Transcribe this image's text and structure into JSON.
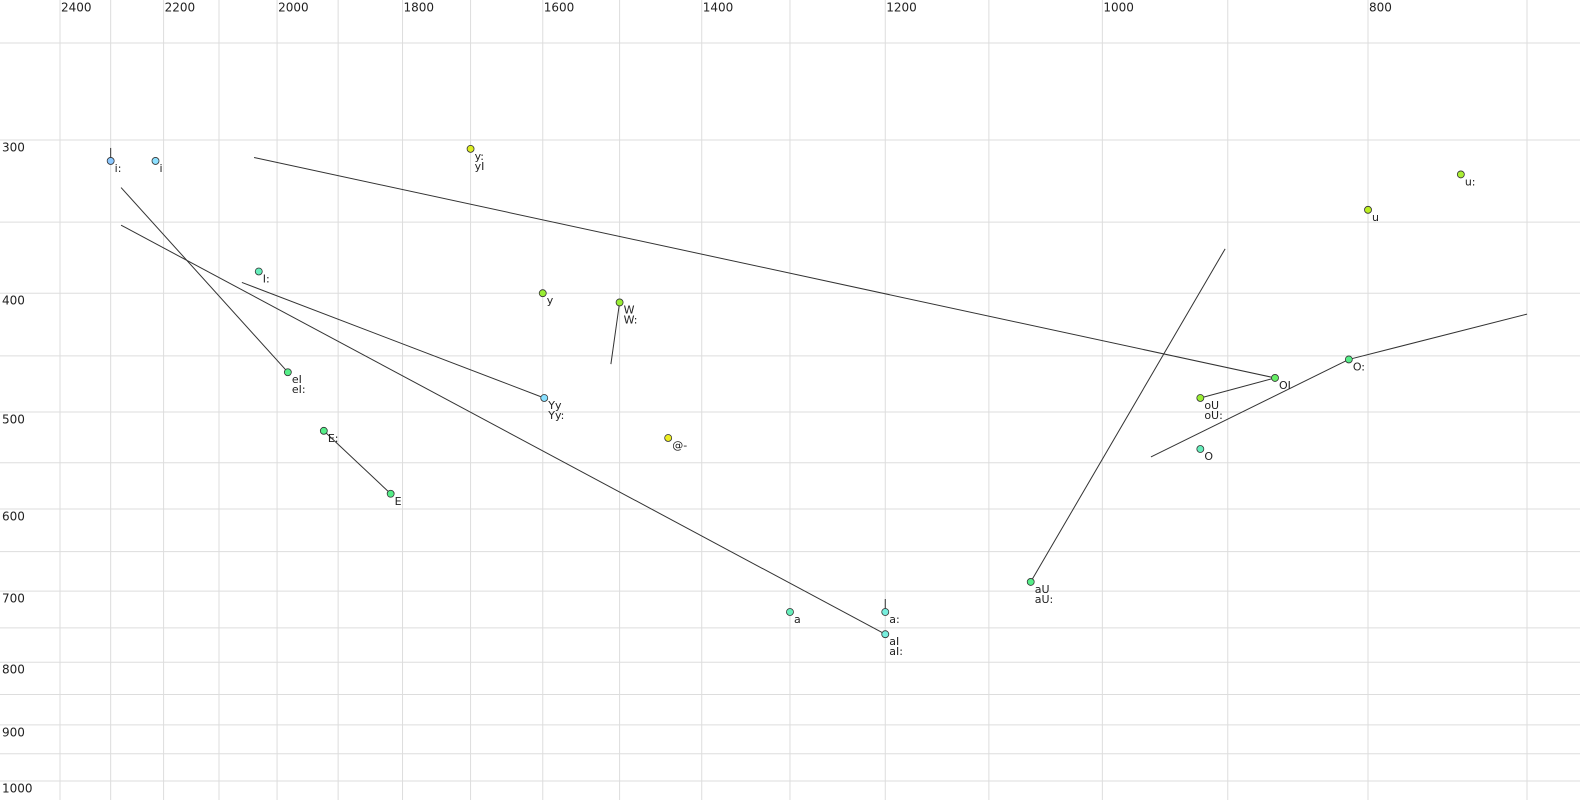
{
  "chart_data": {
    "type": "scatter",
    "xscale": "log",
    "yscale": "log",
    "grid": true,
    "xlim": [
      2400,
      700
    ],
    "ylim": [
      250,
      1000
    ],
    "xticks": [
      2400,
      2200,
      2000,
      1800,
      1600,
      1400,
      1200,
      1000,
      800
    ],
    "xminorticks": [
      2300,
      2100,
      1900,
      1700,
      1500,
      1300,
      1100,
      900,
      700
    ],
    "yticks": [
      300,
      400,
      500,
      600,
      700,
      800,
      900,
      1000
    ],
    "yminorticks": [
      250,
      350,
      450,
      550,
      650,
      750,
      850,
      950
    ],
    "points": [
      {
        "labels": [
          "i:"
        ],
        "x": 2300,
        "y": 312,
        "color": "#8cc8ff",
        "stem": true
      },
      {
        "labels": [
          "i"
        ],
        "x": 2215,
        "y": 312,
        "color": "#8ce0ff"
      },
      {
        "labels": [
          "I:"
        ],
        "x": 2031,
        "y": 384,
        "color": "#66eebb"
      },
      {
        "labels": [
          "eI",
          "eI:"
        ],
        "x": 1982,
        "y": 464,
        "color": "#55ee88"
      },
      {
        "labels": [
          "E:"
        ],
        "x": 1923,
        "y": 518,
        "color": "#55ee88"
      },
      {
        "labels": [
          "E"
        ],
        "x": 1818,
        "y": 583,
        "color": "#55ee88"
      },
      {
        "labels": [
          "y:",
          "yI"
        ],
        "x": 1700,
        "y": 305,
        "color": "#ddee22"
      },
      {
        "labels": [
          "y"
        ],
        "x": 1600,
        "y": 400,
        "color": "#99ee33"
      },
      {
        "labels": [
          "W",
          "W:"
        ],
        "x": 1500,
        "y": 407,
        "color": "#99ee33"
      },
      {
        "labels": [
          "Yy",
          "Yy:"
        ],
        "x": 1598,
        "y": 487,
        "color": "#88e0ff"
      },
      {
        "labels": [
          "@-"
        ],
        "x": 1440,
        "y": 525,
        "color": "#eeee22"
      },
      {
        "labels": [
          "a"
        ],
        "x": 1300,
        "y": 728,
        "color": "#66eebb"
      },
      {
        "labels": [
          "a:"
        ],
        "x": 1200,
        "y": 728,
        "color": "#77eedd",
        "stem": true
      },
      {
        "labels": [
          "aI",
          "aI:"
        ],
        "x": 1200,
        "y": 759,
        "color": "#77eedd"
      },
      {
        "labels": [
          "aU",
          "aU:"
        ],
        "x": 1062,
        "y": 688,
        "color": "#55ee88"
      },
      {
        "labels": [
          "oU",
          "oU:"
        ],
        "x": 921,
        "y": 487,
        "color": "#99ee33"
      },
      {
        "labels": [
          "O"
        ],
        "x": 921,
        "y": 536,
        "color": "#66eebb"
      },
      {
        "labels": [
          "OI"
        ],
        "x": 865,
        "y": 469,
        "color": "#66ee66"
      },
      {
        "labels": [
          "O:"
        ],
        "x": 813,
        "y": 453,
        "color": "#55ee88"
      },
      {
        "labels": [
          "u"
        ],
        "x": 800,
        "y": 342,
        "color": "#bbee22"
      },
      {
        "labels": [
          "u:"
        ],
        "x": 740,
        "y": 320,
        "color": "#aaee33"
      }
    ],
    "segments": [
      [
        2280,
        328,
        1982,
        464
      ],
      [
        2280,
        352,
        1200,
        759
      ],
      [
        2060,
        392,
        1598,
        487
      ],
      [
        1923,
        518,
        1818,
        583
      ],
      [
        1500,
        407,
        1511,
        457
      ],
      [
        2039,
        310,
        865,
        469
      ],
      [
        921,
        487,
        865,
        469
      ],
      [
        960,
        544,
        813,
        453
      ],
      [
        813,
        453,
        700,
        416
      ],
      [
        1062,
        688,
        902,
        368
      ]
    ]
  }
}
